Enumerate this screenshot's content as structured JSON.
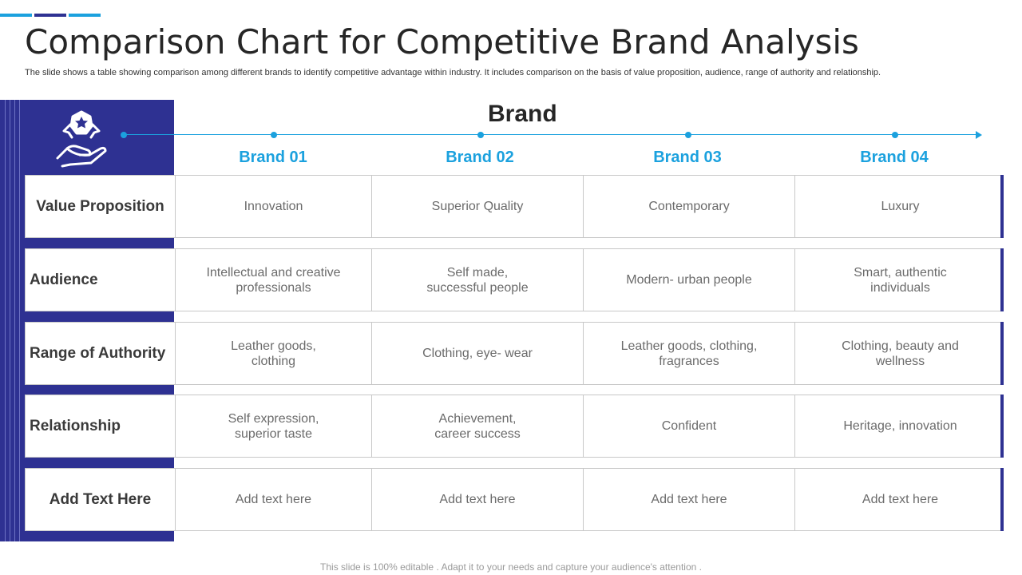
{
  "header": {
    "title": "Comparison Chart for Competitive Brand Analysis",
    "subtitle": "The slide shows a table showing comparison among different brands to identify competitive advantage within industry. It includes comparison on the basis of value proposition, audience, range of authority and relationship."
  },
  "table": {
    "group_label": "Brand",
    "icon": "hand-holding-badge-icon",
    "brands": [
      "Brand 01",
      "Brand 02",
      "Brand 03",
      "Brand 04"
    ],
    "rows": [
      {
        "label": "Value Proposition",
        "cells": [
          "Innovation",
          "Superior Quality",
          "Contemporary",
          "Luxury"
        ]
      },
      {
        "label": "Audience",
        "cells": [
          "Intellectual  and creative\nprofessionals",
          "Self made,\nsuccessful people",
          "Modern- urban people",
          "Smart, authentic\nindividuals"
        ]
      },
      {
        "label": "Range of Authority",
        "cells": [
          "Leather goods,\nclothing",
          "Clothing, eye- wear",
          "Leather goods, clothing,\nfragrances",
          "Clothing, beauty and\nwellness"
        ]
      },
      {
        "label": "Relationship",
        "cells": [
          "Self expression,\nsuperior taste",
          "Achievement,\ncareer success",
          "Confident",
          "Heritage, innovation"
        ]
      },
      {
        "label": "Add Text Here",
        "cells": [
          "Add text here",
          "Add text here",
          "Add text here",
          "Add text here"
        ]
      }
    ]
  },
  "footer": {
    "note": "This slide is 100% editable . Adapt it to your needs and capture your audience's attention ."
  },
  "colors": {
    "navy": "#2e3192",
    "accent": "#1ba1de"
  }
}
